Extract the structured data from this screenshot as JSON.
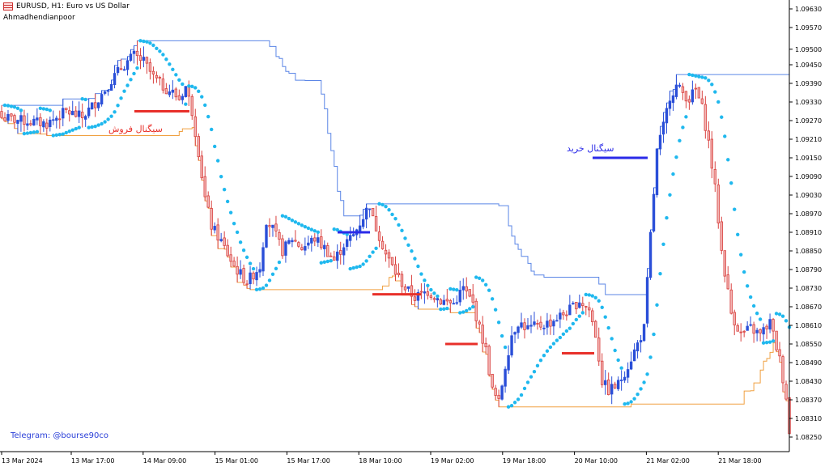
{
  "header": {
    "symbol_line": "EURUSD, H1:  Euro vs US Dollar",
    "indicator_name": "Ahmadhendianpoor"
  },
  "watermark": "Telegram: @bourse90co",
  "annotations": {
    "sell": "سیگنال فروش",
    "buy": "سیگنال خرید"
  },
  "colors": {
    "bull": "#2a4fd8",
    "bear": "#d9413f",
    "psar": "#1fb8ee",
    "upper_channel": "#5b86e6",
    "lower_channel": "#f0a040",
    "sell_marker": "#e8302a",
    "buy_marker": "#2a2ae8"
  },
  "chart_data": {
    "type": "candlestick",
    "symbol": "EURUSD",
    "timeframe": "H1",
    "y_axis_ticks": [
      "1.09630",
      "1.09570",
      "1.09500",
      "1.09450",
      "1.09390",
      "1.09330",
      "1.09270",
      "1.09210",
      "1.09150",
      "1.09090",
      "1.09030",
      "1.08970",
      "1.08910",
      "1.08850",
      "1.08790",
      "1.08730",
      "1.08670",
      "1.08610",
      "1.08550",
      "1.08490",
      "1.08430",
      "1.08370",
      "1.08310",
      "1.08250"
    ],
    "x_axis_ticks": [
      "13 Mar 2024",
      "13 Mar 17:00",
      "14 Mar 09:00",
      "15 Mar 01:00",
      "15 Mar 17:00",
      "18 Mar 10:00",
      "19 Mar 02:00",
      "19 Mar 18:00",
      "20 Mar 10:00",
      "21 Mar 02:00",
      "21 Mar 18:00"
    ],
    "ylim": [
      1.0822,
      1.0966
    ],
    "bars_visible": 131,
    "close_path": [
      [
        0,
        1.0928
      ],
      [
        6,
        1.0927
      ],
      [
        14,
        1.0926
      ],
      [
        20,
        1.093
      ],
      [
        25,
        1.0928
      ],
      [
        30,
        1.0934
      ],
      [
        34,
        1.094
      ],
      [
        37,
        1.0944
      ],
      [
        41,
        1.0948
      ],
      [
        44,
        1.0946
      ],
      [
        47,
        1.0941
      ],
      [
        50,
        1.0938
      ],
      [
        53,
        1.0936
      ],
      [
        55,
        1.0934
      ],
      [
        57,
        1.0938
      ],
      [
        59,
        1.093
      ],
      [
        61,
        1.0917
      ],
      [
        63,
        1.0902
      ],
      [
        65,
        1.0893
      ],
      [
        68,
        1.0888
      ],
      [
        72,
        1.088
      ],
      [
        76,
        1.0875
      ],
      [
        80,
        1.088
      ],
      [
        82,
        1.0895
      ],
      [
        84,
        1.0892
      ],
      [
        87,
        1.0885
      ],
      [
        90,
        1.0889
      ],
      [
        93,
        1.0886
      ],
      [
        97,
        1.0889
      ],
      [
        100,
        1.0886
      ],
      [
        103,
        1.0882
      ],
      [
        106,
        1.0887
      ],
      [
        109,
        1.089
      ],
      [
        112,
        1.0896
      ],
      [
        114,
        1.09
      ],
      [
        115,
        1.0895
      ],
      [
        117,
        1.089
      ],
      [
        119,
        1.0884
      ],
      [
        122,
        1.0878
      ],
      [
        125,
        1.0873
      ],
      [
        128,
        1.087
      ],
      [
        132,
        1.0872
      ],
      [
        136,
        1.0869
      ],
      [
        140,
        1.0868
      ],
      [
        143,
        1.0873
      ],
      [
        146,
        1.0868
      ],
      [
        148,
        1.086
      ],
      [
        150,
        1.0853
      ],
      [
        152,
        1.084
      ],
      [
        154,
        1.0836
      ],
      [
        156,
        1.0848
      ],
      [
        158,
        1.0858
      ],
      [
        160,
        1.0862
      ],
      [
        163,
        1.086
      ],
      [
        167,
        1.0861
      ],
      [
        170,
        1.0862
      ],
      [
        173,
        1.0864
      ],
      [
        176,
        1.0866
      ],
      [
        179,
        1.0869
      ],
      [
        182,
        1.0866
      ],
      [
        184,
        1.0858
      ],
      [
        186,
        1.0843
      ],
      [
        188,
        1.084
      ],
      [
        191,
        1.0842
      ],
      [
        194,
        1.0848
      ],
      [
        197,
        1.0855
      ],
      [
        199,
        1.086
      ],
      [
        201,
        1.089
      ],
      [
        203,
        1.0917
      ],
      [
        205,
        1.0925
      ],
      [
        207,
        1.0935
      ],
      [
        209,
        1.0938
      ],
      [
        211,
        1.0936
      ],
      [
        213,
        1.0934
      ],
      [
        215,
        1.0937
      ],
      [
        217,
        1.0931
      ],
      [
        219,
        1.092
      ],
      [
        221,
        1.0905
      ],
      [
        223,
        1.0885
      ],
      [
        226,
        1.0865
      ],
      [
        229,
        1.0858
      ],
      [
        232,
        1.086
      ],
      [
        235,
        1.0858
      ],
      [
        238,
        1.0862
      ],
      [
        241,
        1.085
      ],
      [
        243,
        1.0838
      ],
      [
        244,
        1.0826
      ]
    ],
    "parabolic_sar_note": "dots above price in downtrends, below in uptrends",
    "series": [
      {
        "type": "candles"
      },
      {
        "type": "parabolic_sar"
      },
      {
        "type": "upper_channel"
      },
      {
        "type": "lower_channel"
      }
    ],
    "signals": [
      {
        "kind": "sell",
        "price": 1.093,
        "label": "سیگنال فروش"
      },
      {
        "kind": "buy",
        "price": 1.0891
      },
      {
        "kind": "sell",
        "price": 1.0871
      },
      {
        "kind": "sell",
        "price": 1.0855
      },
      {
        "kind": "sell",
        "price": 1.0852
      },
      {
        "kind": "buy",
        "price": 1.0915,
        "label": "سیگنال خرید"
      }
    ]
  }
}
